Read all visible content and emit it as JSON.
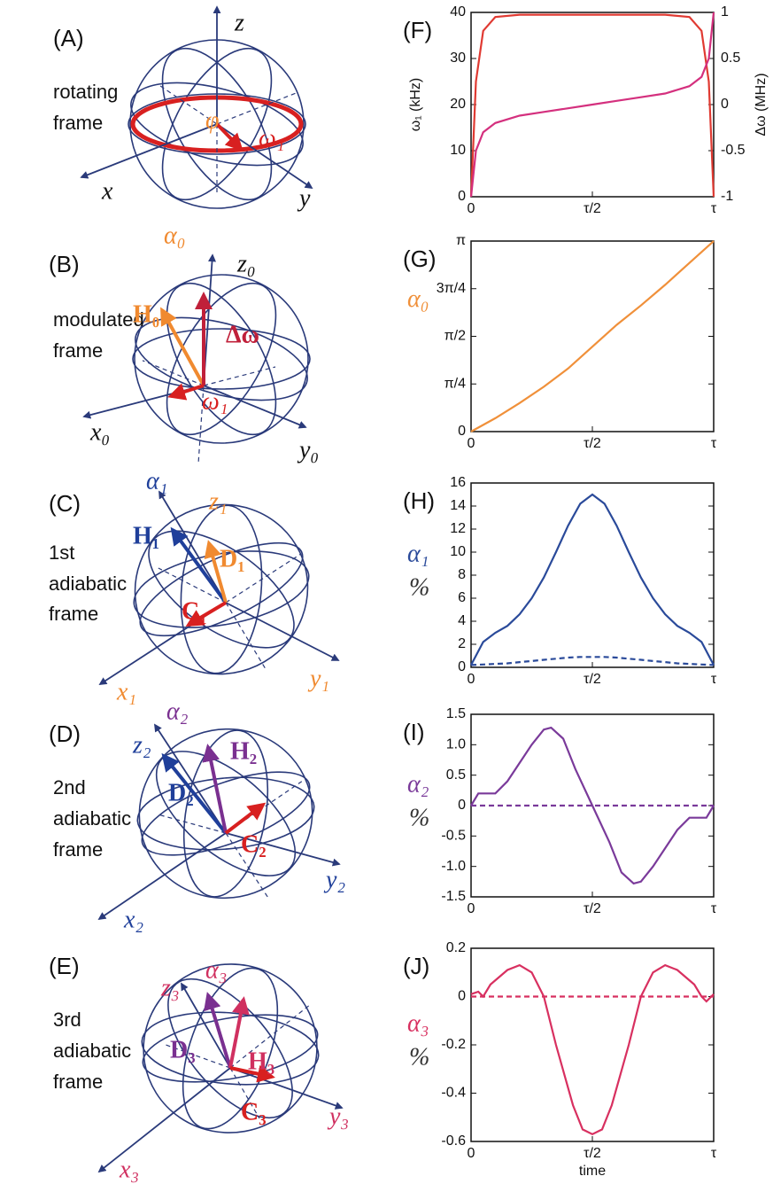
{
  "diagrams": [
    {
      "label": "(A)",
      "caption": [
        "rotating",
        "frame"
      ],
      "symbols": [
        "z",
        "x",
        "y",
        "φ",
        "ω₁"
      ]
    },
    {
      "label": "(B)",
      "caption": [
        "modulated",
        "frame"
      ],
      "symbols": [
        "α₀",
        "z₀",
        "H₀",
        "Δω",
        "ω₁",
        "x₀",
        "y₀"
      ]
    },
    {
      "label": "(C)",
      "caption": [
        "1st",
        "adiabatic",
        "frame"
      ],
      "symbols": [
        "α₁",
        "z₁",
        "H₁",
        "D₁",
        "C₁",
        "x₁",
        "y₁"
      ]
    },
    {
      "label": "(D)",
      "caption": [
        "2nd",
        "adiabatic",
        "frame"
      ],
      "symbols": [
        "α₂",
        "z₂",
        "H₂",
        "D₂",
        "C₂",
        "x₂",
        "y₂"
      ]
    },
    {
      "label": "(E)",
      "caption": [
        "3rd",
        "adiabatic",
        "frame"
      ],
      "symbols": [
        "α₃",
        "z₃",
        "D₃",
        "H₃",
        "C₃",
        "x₃",
        "y₃"
      ]
    }
  ],
  "chart_data": [
    {
      "type": "line",
      "panel": "(F)",
      "ylabel": "ω₁ (kHz)",
      "y2label": "Δω (MHz)",
      "ylabel_rotated": true,
      "x": [
        0,
        0.02,
        0.05,
        0.1,
        0.2,
        0.3,
        0.4,
        0.5,
        0.6,
        0.7,
        0.8,
        0.9,
        0.95,
        0.98,
        1
      ],
      "xlim": [
        0,
        1
      ],
      "xticks": [
        0,
        {
          "value": 0.5,
          "label": "τ/2"
        },
        {
          "value": 1,
          "label": "τ"
        }
      ],
      "ylim": [
        0,
        40
      ],
      "yticks": [
        0,
        10,
        20,
        30,
        40
      ],
      "y2lim": [
        -1,
        1
      ],
      "y2ticks": [
        -1,
        -0.5,
        0,
        0.5,
        1
      ],
      "series": [
        {
          "color": "#e03a32",
          "values": [
            0,
            25,
            36,
            39,
            39.5,
            39.5,
            39.5,
            39.5,
            39.5,
            39.5,
            39.5,
            39,
            36,
            25,
            0
          ]
        },
        {
          "color": "#d4307e",
          "axis": "y2",
          "values": [
            -1,
            -0.5,
            -0.3,
            -0.2,
            -0.12,
            -0.08,
            -0.04,
            0,
            0.04,
            0.08,
            0.12,
            0.2,
            0.3,
            0.5,
            1
          ]
        }
      ]
    },
    {
      "type": "line",
      "panel": "(G)",
      "ylabel": "α₀",
      "ylabel_color": "#f0903a",
      "x": [
        0,
        0.1,
        0.2,
        0.3,
        0.4,
        0.5,
        0.6,
        0.7,
        0.8,
        0.9,
        1
      ],
      "xlim": [
        0,
        1
      ],
      "xticks": [
        0,
        {
          "value": 0.5,
          "label": "τ/2"
        },
        {
          "value": 1,
          "label": "τ"
        }
      ],
      "ylim": [
        0,
        3.1416
      ],
      "yticks": [
        0,
        {
          "value": 0.7854,
          "label": "π/4"
        },
        {
          "value": 1.5708,
          "label": "π/2"
        },
        {
          "value": 2.3562,
          "label": "3π/4"
        },
        {
          "value": 3.1416,
          "label": "π"
        }
      ],
      "series": [
        {
          "color": "#f0903a",
          "values": [
            0,
            0.22,
            0.47,
            0.74,
            1.04,
            1.4,
            1.76,
            2.08,
            2.42,
            2.78,
            3.14
          ]
        }
      ]
    },
    {
      "type": "line",
      "panel": "(H)",
      "ylabel": "α₁",
      "yunit": "%",
      "ylabel_color": "#2a4a9a",
      "x": [
        0,
        0.05,
        0.1,
        0.15,
        0.2,
        0.25,
        0.3,
        0.35,
        0.4,
        0.45,
        0.5,
        0.55,
        0.6,
        0.65,
        0.7,
        0.75,
        0.8,
        0.85,
        0.9,
        0.95,
        1
      ],
      "xlim": [
        0,
        1
      ],
      "xticks": [
        0,
        {
          "value": 0.5,
          "label": "τ/2"
        },
        {
          "value": 1,
          "label": "τ"
        }
      ],
      "ylim": [
        0,
        16
      ],
      "yticks": [
        0,
        2,
        4,
        6,
        8,
        10,
        12,
        14,
        16
      ],
      "series": [
        {
          "color": "#2a4a9a",
          "values": [
            0.2,
            2.2,
            3,
            3.6,
            4.6,
            6,
            7.8,
            10,
            12.3,
            14.2,
            15,
            14.2,
            12.3,
            10,
            7.8,
            6,
            4.6,
            3.6,
            3,
            2.2,
            0.2
          ]
        },
        {
          "color": "#2a4a9a",
          "dash": true,
          "values": [
            0.2,
            0.25,
            0.3,
            0.35,
            0.45,
            0.55,
            0.65,
            0.75,
            0.85,
            0.9,
            0.9,
            0.9,
            0.85,
            0.75,
            0.65,
            0.55,
            0.45,
            0.35,
            0.3,
            0.25,
            0.2
          ]
        }
      ]
    },
    {
      "type": "line",
      "panel": "(I)",
      "ylabel": "α₂",
      "yunit": "%",
      "ylabel_color": "#7a3a9a",
      "x": [
        0,
        0.03,
        0.06,
        0.1,
        0.15,
        0.2,
        0.25,
        0.3,
        0.33,
        0.38,
        0.43,
        0.5,
        0.57,
        0.62,
        0.67,
        0.7,
        0.75,
        0.8,
        0.85,
        0.9,
        0.94,
        0.97,
        1
      ],
      "xlim": [
        0,
        1
      ],
      "xticks": [
        0,
        {
          "value": 0.5,
          "label": "τ/2"
        },
        {
          "value": 1,
          "label": "τ"
        }
      ],
      "ylim": [
        -1.5,
        1.5
      ],
      "yticks": [
        -1.5,
        {
          "value": -1,
          "label": "-1.0"
        },
        -0.5,
        0,
        0.5,
        {
          "value": 1,
          "label": "1.0"
        },
        1.5
      ],
      "series": [
        {
          "color": "#7a3a9a",
          "values": [
            0,
            0.2,
            0.2,
            0.2,
            0.4,
            0.7,
            1,
            1.25,
            1.28,
            1.1,
            0.6,
            0,
            -0.6,
            -1.1,
            -1.28,
            -1.25,
            -1,
            -0.7,
            -0.4,
            -0.2,
            -0.2,
            -0.2,
            0
          ]
        },
        {
          "color": "#7a3a9a",
          "dash": true,
          "values": [
            0,
            0,
            0,
            0,
            0,
            0,
            0,
            0,
            0,
            0,
            0,
            0,
            0,
            0,
            0,
            0,
            0,
            0,
            0,
            0,
            0,
            0,
            0
          ]
        }
      ]
    },
    {
      "type": "line",
      "panel": "(J)",
      "ylabel": "α₃",
      "yunit": "%",
      "ylabel_color": "#d83060",
      "xlabel": "time",
      "x": [
        0,
        0.03,
        0.05,
        0.08,
        0.15,
        0.2,
        0.25,
        0.3,
        0.35,
        0.42,
        0.46,
        0.5,
        0.54,
        0.58,
        0.65,
        0.7,
        0.75,
        0.8,
        0.85,
        0.92,
        0.95,
        0.97,
        1
      ],
      "xlim": [
        0,
        1
      ],
      "xticks": [
        0,
        {
          "value": 0.5,
          "label": "τ/2"
        },
        {
          "value": 1,
          "label": "τ"
        }
      ],
      "ylim": [
        -0.6,
        0.2
      ],
      "yticks": [
        -0.6,
        -0.4,
        -0.2,
        0,
        0.2
      ],
      "series": [
        {
          "color": "#d83060",
          "values": [
            0.01,
            0.02,
            0,
            0.05,
            0.11,
            0.13,
            0.1,
            0,
            -0.2,
            -0.45,
            -0.55,
            -0.57,
            -0.55,
            -0.45,
            -0.2,
            0,
            0.1,
            0.13,
            0.11,
            0.05,
            0,
            -0.02,
            0.01
          ]
        },
        {
          "color": "#d83060",
          "dash": true,
          "values": [
            0,
            0,
            0,
            0,
            0,
            0,
            0,
            0,
            0,
            0,
            0,
            0,
            0,
            0,
            0,
            0,
            0,
            0,
            0,
            0,
            0,
            0,
            0
          ]
        }
      ]
    }
  ]
}
